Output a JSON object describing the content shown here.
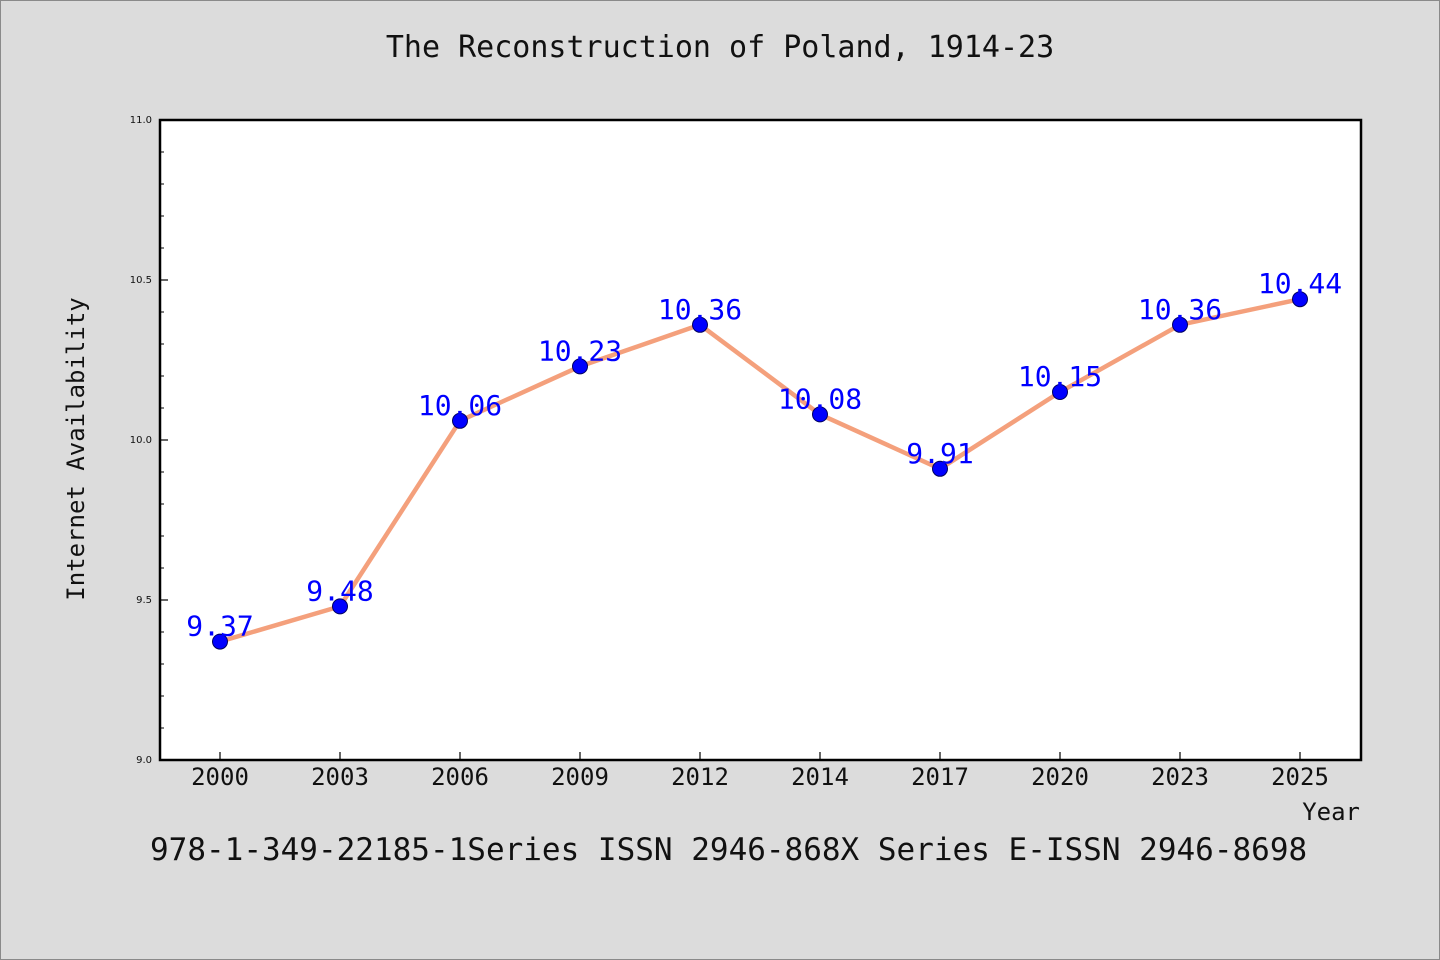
{
  "title": "The Reconstruction of Poland, 1914-23",
  "footer": "978-1-349-22185-1Series ISSN 2946-868X Series E-ISSN 2946-8698",
  "colors": {
    "background": "#dcdcdc",
    "plot_background": "#ffffff",
    "line": "#f4a07c",
    "marker": "#0000ff",
    "data_label": "#0000ff"
  },
  "chart_data": {
    "type": "line",
    "categories": [
      "2000",
      "2003",
      "2006",
      "2009",
      "2012",
      "2014",
      "2017",
      "2020",
      "2023",
      "2025"
    ],
    "values": [
      9.37,
      9.48,
      10.06,
      10.23,
      10.36,
      10.08,
      9.91,
      10.15,
      10.36,
      10.44
    ],
    "value_labels": [
      "9.37",
      "9.48",
      "10.06",
      "10.23",
      "10.36",
      "10.08",
      "9.91",
      "10.15",
      "10.36",
      "10.44"
    ],
    "xlabel": "Year",
    "ylabel": "Internet Availability",
    "ylim": [
      9.0,
      11.0
    ],
    "yticks": [
      9.0,
      9.5,
      10.0,
      10.5,
      11.0
    ],
    "ytick_labels": [
      "9.0",
      "9.5",
      "10.0",
      "10.5",
      "11.0"
    ],
    "grid": false,
    "markers": true
  }
}
